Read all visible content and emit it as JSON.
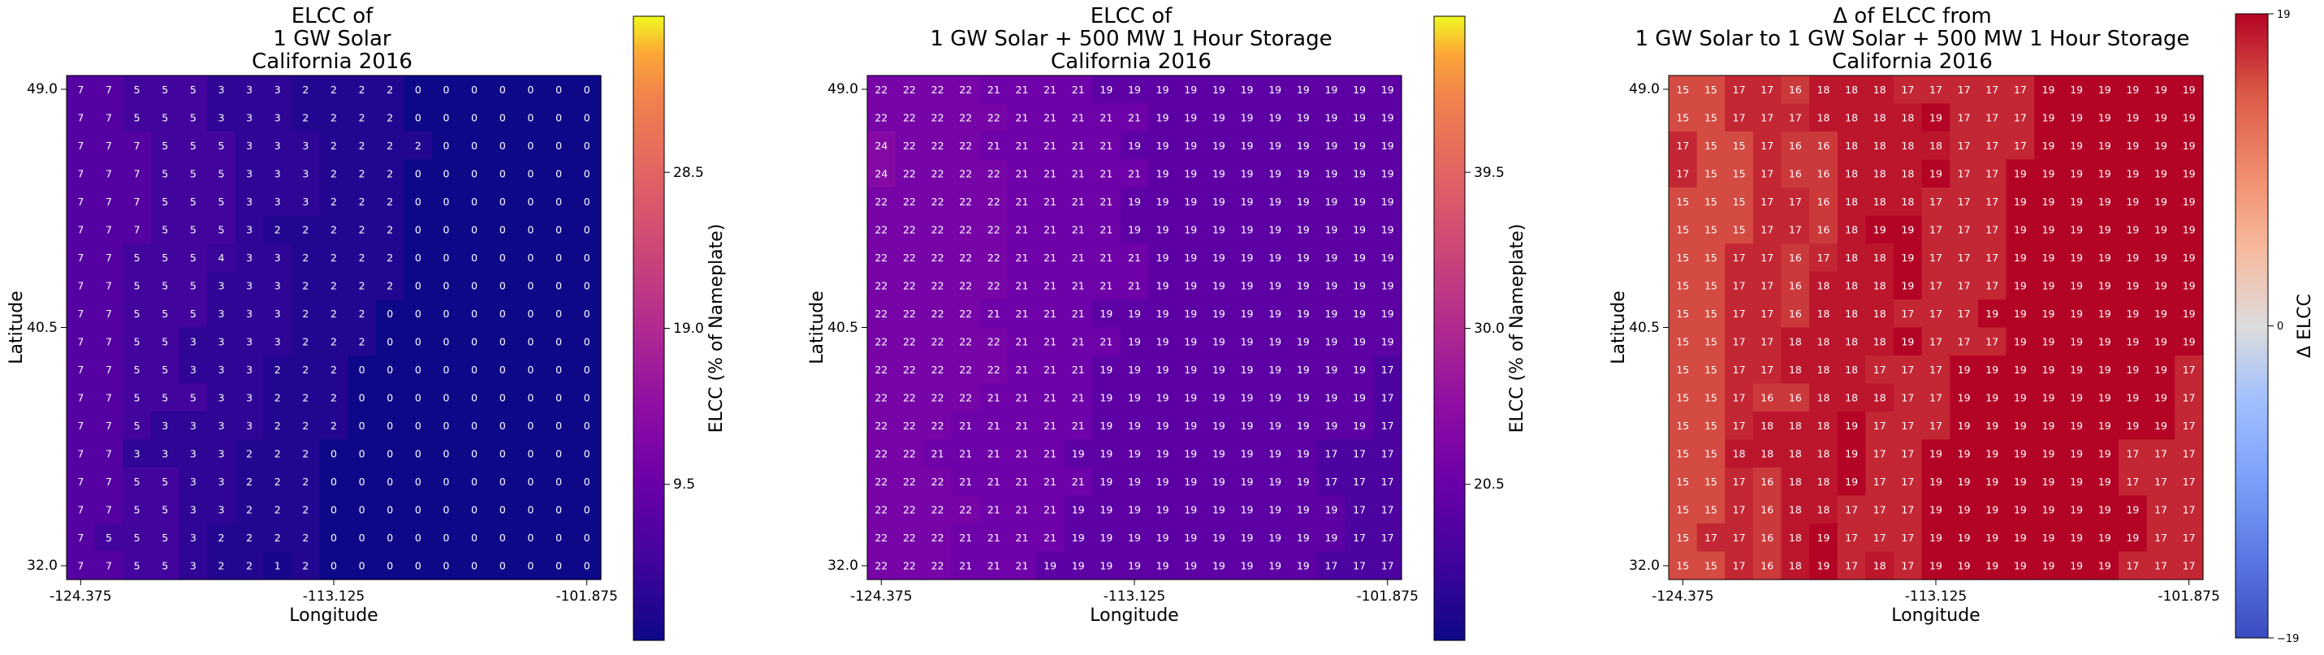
{
  "chart_data": [
    {
      "type": "heatmap",
      "title": [
        "ELCC of",
        "1 GW Solar",
        "California 2016"
      ],
      "xlabel": "Longitude",
      "ylabel": "Latitude",
      "xticks": [
        "-124.375",
        "-113.125",
        "-101.875"
      ],
      "yticks": [
        "49.0",
        "40.5",
        "32.0"
      ],
      "colorbar_label": "ELCC (% of Nameplate)",
      "colorbar_ticks": [
        "28.5",
        "19.0",
        "9.5"
      ],
      "colormap": "plasma",
      "vmin": 0,
      "vmax": 38,
      "grid": [
        [
          7,
          7,
          5,
          5,
          5,
          3,
          3,
          3,
          2,
          2,
          2,
          2,
          0,
          0,
          0,
          0,
          0,
          0,
          0
        ],
        [
          7,
          7,
          5,
          5,
          5,
          3,
          3,
          3,
          2,
          2,
          2,
          2,
          0,
          0,
          0,
          0,
          0,
          0,
          0
        ],
        [
          7,
          7,
          7,
          5,
          5,
          5,
          3,
          3,
          3,
          2,
          2,
          2,
          2,
          0,
          0,
          0,
          0,
          0,
          0
        ],
        [
          7,
          7,
          7,
          5,
          5,
          5,
          3,
          3,
          3,
          2,
          2,
          2,
          0,
          0,
          0,
          0,
          0,
          0,
          0
        ],
        [
          7,
          7,
          7,
          5,
          5,
          5,
          3,
          3,
          3,
          2,
          2,
          2,
          0,
          0,
          0,
          0,
          0,
          0,
          0
        ],
        [
          7,
          7,
          7,
          5,
          5,
          5,
          3,
          2,
          2,
          2,
          2,
          2,
          0,
          0,
          0,
          0,
          0,
          0,
          0
        ],
        [
          7,
          7,
          5,
          5,
          5,
          4,
          3,
          3,
          2,
          2,
          2,
          2,
          0,
          0,
          0,
          0,
          0,
          0,
          0
        ],
        [
          7,
          7,
          5,
          5,
          5,
          3,
          3,
          3,
          2,
          2,
          2,
          2,
          0,
          0,
          0,
          0,
          0,
          0,
          0
        ],
        [
          7,
          7,
          5,
          5,
          5,
          3,
          3,
          3,
          2,
          2,
          2,
          0,
          0,
          0,
          0,
          0,
          0,
          0,
          0
        ],
        [
          7,
          7,
          5,
          5,
          3,
          3,
          3,
          3,
          2,
          2,
          2,
          0,
          0,
          0,
          0,
          0,
          0,
          0,
          0
        ],
        [
          7,
          7,
          5,
          5,
          3,
          3,
          3,
          2,
          2,
          2,
          0,
          0,
          0,
          0,
          0,
          0,
          0,
          0,
          0
        ],
        [
          7,
          7,
          5,
          5,
          5,
          3,
          3,
          2,
          2,
          2,
          0,
          0,
          0,
          0,
          0,
          0,
          0,
          0,
          0
        ],
        [
          7,
          7,
          5,
          3,
          3,
          3,
          3,
          2,
          2,
          2,
          0,
          0,
          0,
          0,
          0,
          0,
          0,
          0,
          0
        ],
        [
          7,
          7,
          3,
          3,
          3,
          3,
          2,
          2,
          2,
          0,
          0,
          0,
          0,
          0,
          0,
          0,
          0,
          0,
          0
        ],
        [
          7,
          7,
          5,
          5,
          3,
          3,
          2,
          2,
          2,
          0,
          0,
          0,
          0,
          0,
          0,
          0,
          0,
          0,
          0
        ],
        [
          7,
          7,
          5,
          5,
          3,
          3,
          2,
          2,
          2,
          0,
          0,
          0,
          0,
          0,
          0,
          0,
          0,
          0,
          0
        ],
        [
          7,
          5,
          5,
          5,
          3,
          2,
          2,
          2,
          2,
          0,
          0,
          0,
          0,
          0,
          0,
          0,
          0,
          0,
          0
        ],
        [
          7,
          7,
          5,
          5,
          3,
          2,
          2,
          1,
          2,
          0,
          0,
          0,
          0,
          0,
          0,
          0,
          0,
          0,
          0
        ]
      ]
    },
    {
      "type": "heatmap",
      "title": [
        "ELCC of",
        "1 GW Solar + 500 MW 1 Hour Storage",
        "California 2016"
      ],
      "xlabel": "Longitude",
      "ylabel": "Latitude",
      "xticks": [
        "-124.375",
        "-113.125",
        "-101.875"
      ],
      "yticks": [
        "49.0",
        "40.5",
        "32.0"
      ],
      "colorbar_label": "ELCC (% of Nameplate)",
      "colorbar_ticks": [
        "39.5",
        "30.0",
        "20.5"
      ],
      "colormap": "plasma",
      "vmin": 11,
      "vmax": 49,
      "grid": [
        [
          22,
          22,
          22,
          22,
          21,
          21,
          21,
          21,
          19,
          19,
          19,
          19,
          19,
          19,
          19,
          19,
          19,
          19,
          19
        ],
        [
          22,
          22,
          22,
          22,
          22,
          21,
          21,
          21,
          21,
          21,
          19,
          19,
          19,
          19,
          19,
          19,
          19,
          19,
          19
        ],
        [
          24,
          22,
          22,
          22,
          21,
          21,
          21,
          21,
          21,
          19,
          19,
          19,
          19,
          19,
          19,
          19,
          19,
          19,
          19
        ],
        [
          24,
          22,
          22,
          22,
          22,
          21,
          21,
          21,
          21,
          21,
          19,
          19,
          19,
          19,
          19,
          19,
          19,
          19,
          19
        ],
        [
          22,
          22,
          22,
          22,
          22,
          21,
          21,
          21,
          21,
          19,
          19,
          19,
          19,
          19,
          19,
          19,
          19,
          19,
          19
        ],
        [
          22,
          22,
          22,
          22,
          22,
          21,
          21,
          21,
          21,
          19,
          19,
          19,
          19,
          19,
          19,
          19,
          19,
          19,
          19
        ],
        [
          22,
          22,
          22,
          22,
          22,
          21,
          21,
          21,
          21,
          21,
          19,
          19,
          19,
          19,
          19,
          19,
          19,
          19,
          19
        ],
        [
          22,
          22,
          22,
          22,
          22,
          21,
          21,
          21,
          21,
          21,
          19,
          19,
          19,
          19,
          19,
          19,
          19,
          19,
          19
        ],
        [
          22,
          22,
          22,
          22,
          21,
          21,
          21,
          21,
          19,
          19,
          19,
          19,
          19,
          19,
          19,
          19,
          19,
          19,
          19
        ],
        [
          22,
          22,
          22,
          22,
          22,
          21,
          21,
          21,
          21,
          19,
          19,
          19,
          19,
          19,
          19,
          19,
          19,
          19,
          19
        ],
        [
          22,
          22,
          22,
          22,
          22,
          21,
          21,
          21,
          19,
          19,
          19,
          19,
          19,
          19,
          19,
          19,
          19,
          19,
          17
        ],
        [
          22,
          22,
          22,
          22,
          21,
          21,
          21,
          21,
          19,
          19,
          19,
          19,
          19,
          19,
          19,
          19,
          19,
          19,
          17
        ],
        [
          22,
          22,
          22,
          21,
          21,
          21,
          21,
          21,
          19,
          19,
          19,
          19,
          19,
          19,
          19,
          19,
          19,
          19,
          17
        ],
        [
          22,
          22,
          21,
          21,
          21,
          21,
          21,
          19,
          19,
          19,
          19,
          19,
          19,
          19,
          19,
          19,
          17,
          17,
          17
        ],
        [
          22,
          22,
          22,
          21,
          21,
          21,
          21,
          21,
          19,
          19,
          19,
          19,
          19,
          19,
          19,
          19,
          17,
          17,
          17
        ],
        [
          22,
          22,
          22,
          22,
          21,
          21,
          21,
          19,
          19,
          19,
          19,
          19,
          19,
          19,
          19,
          19,
          19,
          17,
          17
        ],
        [
          22,
          22,
          22,
          21,
          21,
          21,
          21,
          19,
          19,
          19,
          19,
          19,
          19,
          19,
          19,
          19,
          19,
          17,
          17
        ],
        [
          22,
          22,
          22,
          21,
          21,
          21,
          19,
          19,
          19,
          19,
          19,
          19,
          19,
          19,
          19,
          19,
          17,
          17,
          17
        ]
      ]
    },
    {
      "type": "heatmap",
      "title": [
        "Δ of ELCC from",
        "1 GW Solar to 1 GW Solar + 500 MW 1 Hour Storage",
        "California 2016"
      ],
      "xlabel": "Longitude",
      "ylabel": "Latitude",
      "xticks": [
        "-124.375",
        "-113.125",
        "-101.875"
      ],
      "yticks": [
        "49.0",
        "40.5",
        "32.0"
      ],
      "colorbar_label": "Δ ELCC",
      "colorbar_ticks": [
        "19",
        "0",
        "−19"
      ],
      "colormap": "coolwarm",
      "vmin": -19,
      "vmax": 19,
      "grid": [
        [
          15,
          15,
          17,
          17,
          16,
          18,
          18,
          18,
          17,
          17,
          17,
          17,
          17,
          19,
          19,
          19,
          19,
          19,
          19
        ],
        [
          15,
          15,
          17,
          17,
          17,
          18,
          18,
          18,
          18,
          19,
          17,
          17,
          17,
          19,
          19,
          19,
          19,
          19,
          19
        ],
        [
          17,
          15,
          15,
          17,
          16,
          16,
          18,
          18,
          18,
          18,
          17,
          17,
          17,
          19,
          19,
          19,
          19,
          19,
          19
        ],
        [
          17,
          15,
          15,
          17,
          16,
          16,
          18,
          18,
          18,
          19,
          17,
          17,
          19,
          19,
          19,
          19,
          19,
          19,
          19
        ],
        [
          15,
          15,
          15,
          17,
          17,
          16,
          18,
          18,
          18,
          17,
          17,
          17,
          19,
          19,
          19,
          19,
          19,
          19,
          19
        ],
        [
          15,
          15,
          15,
          17,
          17,
          16,
          18,
          19,
          19,
          17,
          17,
          17,
          19,
          19,
          19,
          19,
          19,
          19,
          19
        ],
        [
          15,
          15,
          17,
          17,
          16,
          17,
          18,
          18,
          19,
          17,
          17,
          17,
          19,
          19,
          19,
          19,
          19,
          19,
          19
        ],
        [
          15,
          15,
          17,
          17,
          16,
          18,
          18,
          18,
          19,
          17,
          17,
          17,
          19,
          19,
          19,
          19,
          19,
          19,
          19
        ],
        [
          15,
          15,
          17,
          17,
          16,
          18,
          18,
          18,
          17,
          17,
          17,
          19,
          19,
          19,
          19,
          19,
          19,
          19,
          19
        ],
        [
          15,
          15,
          17,
          17,
          18,
          18,
          18,
          18,
          19,
          17,
          17,
          17,
          19,
          19,
          19,
          19,
          19,
          19,
          19
        ],
        [
          15,
          15,
          17,
          17,
          18,
          18,
          18,
          17,
          17,
          17,
          19,
          19,
          19,
          19,
          19,
          19,
          19,
          19,
          17
        ],
        [
          15,
          15,
          17,
          16,
          16,
          18,
          18,
          18,
          17,
          17,
          19,
          19,
          19,
          19,
          19,
          19,
          19,
          19,
          17
        ],
        [
          15,
          15,
          17,
          18,
          18,
          18,
          19,
          17,
          17,
          17,
          19,
          19,
          19,
          19,
          19,
          19,
          19,
          19,
          17
        ],
        [
          15,
          15,
          18,
          18,
          18,
          18,
          19,
          17,
          17,
          19,
          19,
          19,
          19,
          19,
          19,
          19,
          17,
          17,
          17
        ],
        [
          15,
          15,
          17,
          16,
          18,
          18,
          19,
          17,
          17,
          19,
          19,
          19,
          19,
          19,
          19,
          19,
          17,
          17,
          17
        ],
        [
          15,
          15,
          17,
          16,
          18,
          18,
          17,
          17,
          17,
          19,
          19,
          19,
          19,
          19,
          19,
          19,
          19,
          17,
          17
        ],
        [
          15,
          17,
          17,
          16,
          18,
          19,
          17,
          17,
          17,
          19,
          19,
          19,
          19,
          19,
          19,
          19,
          19,
          17,
          17
        ],
        [
          15,
          15,
          17,
          16,
          18,
          19,
          17,
          18,
          17,
          19,
          19,
          19,
          19,
          19,
          19,
          19,
          17,
          17,
          17
        ]
      ]
    }
  ]
}
